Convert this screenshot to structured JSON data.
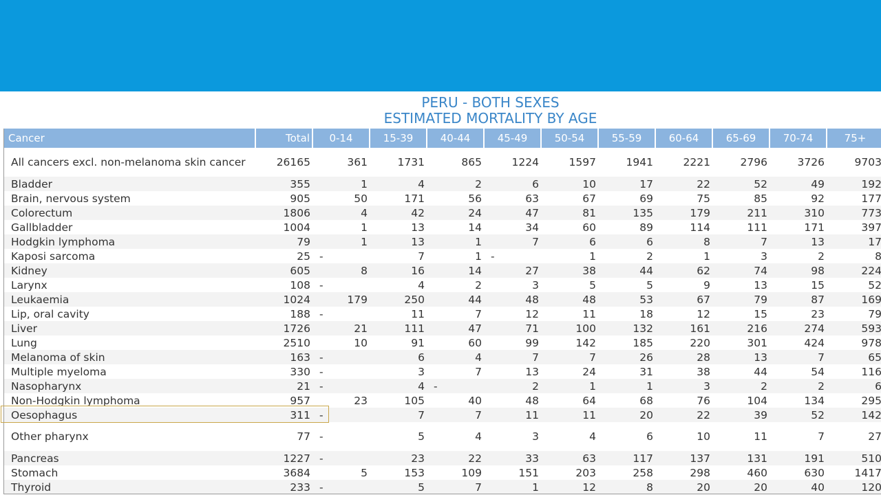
{
  "title_line1": "PERU - BOTH SEXES",
  "title_line2": "ESTIMATED MORTALITY BY AGE",
  "columns": [
    "Cancer",
    "Total",
    "0-14",
    "15-39",
    "40-44",
    "45-49",
    "50-54",
    "55-59",
    "60-64",
    "65-69",
    "70-74",
    "75+"
  ],
  "rows": [
    {
      "name": "All cancers excl. non-melanoma skin cancer",
      "values": [
        "26165",
        "361",
        "1731",
        "865",
        "1224",
        "1597",
        "1941",
        "2221",
        "2796",
        "3726",
        "9703"
      ]
    },
    {
      "name": "Bladder",
      "values": [
        "355",
        "1",
        "4",
        "2",
        "6",
        "10",
        "17",
        "22",
        "52",
        "49",
        "192"
      ]
    },
    {
      "name": "Brain, nervous system",
      "values": [
        "905",
        "50",
        "171",
        "56",
        "63",
        "67",
        "69",
        "75",
        "85",
        "92",
        "177"
      ]
    },
    {
      "name": "Colorectum",
      "values": [
        "1806",
        "4",
        "42",
        "24",
        "47",
        "81",
        "135",
        "179",
        "211",
        "310",
        "773"
      ]
    },
    {
      "name": "Gallbladder",
      "values": [
        "1004",
        "1",
        "13",
        "14",
        "34",
        "60",
        "89",
        "114",
        "111",
        "171",
        "397"
      ]
    },
    {
      "name": "Hodgkin lymphoma",
      "values": [
        "79",
        "1",
        "13",
        "1",
        "7",
        "6",
        "6",
        "8",
        "7",
        "13",
        "17"
      ]
    },
    {
      "name": "Kaposi sarcoma",
      "values": [
        "25",
        "-",
        "7",
        "1",
        "-",
        "1",
        "2",
        "1",
        "3",
        "2",
        "8"
      ]
    },
    {
      "name": "Kidney",
      "values": [
        "605",
        "8",
        "16",
        "14",
        "27",
        "38",
        "44",
        "62",
        "74",
        "98",
        "224"
      ]
    },
    {
      "name": "Larynx",
      "values": [
        "108",
        "-",
        "4",
        "2",
        "3",
        "5",
        "5",
        "9",
        "13",
        "15",
        "52"
      ]
    },
    {
      "name": "Leukaemia",
      "values": [
        "1024",
        "179",
        "250",
        "44",
        "48",
        "48",
        "53",
        "67",
        "79",
        "87",
        "169"
      ]
    },
    {
      "name": "Lip, oral cavity",
      "values": [
        "188",
        "-",
        "11",
        "7",
        "12",
        "11",
        "18",
        "12",
        "15",
        "23",
        "79"
      ]
    },
    {
      "name": "Liver",
      "values": [
        "1726",
        "21",
        "111",
        "47",
        "71",
        "100",
        "132",
        "161",
        "216",
        "274",
        "593"
      ]
    },
    {
      "name": "Lung",
      "values": [
        "2510",
        "10",
        "91",
        "60",
        "99",
        "142",
        "185",
        "220",
        "301",
        "424",
        "978"
      ]
    },
    {
      "name": "Melanoma of skin",
      "values": [
        "163",
        "-",
        "6",
        "4",
        "7",
        "7",
        "26",
        "28",
        "13",
        "7",
        "65"
      ]
    },
    {
      "name": "Multiple myeloma",
      "values": [
        "330",
        "-",
        "3",
        "7",
        "13",
        "24",
        "31",
        "38",
        "44",
        "54",
        "116"
      ]
    },
    {
      "name": "Nasopharynx",
      "values": [
        "21",
        "-",
        "4",
        "-",
        "2",
        "1",
        "1",
        "3",
        "2",
        "2",
        "6"
      ]
    },
    {
      "name": "Non-Hodgkin lymphoma",
      "values": [
        "957",
        "23",
        "105",
        "40",
        "48",
        "64",
        "68",
        "76",
        "104",
        "134",
        "295"
      ]
    },
    {
      "name": "Oesophagus",
      "values": [
        "311",
        "-",
        "7",
        "7",
        "11",
        "11",
        "20",
        "22",
        "39",
        "52",
        "142"
      ]
    },
    {
      "name": "Other pharynx",
      "values": [
        "77",
        "-",
        "5",
        "4",
        "3",
        "4",
        "6",
        "10",
        "11",
        "7",
        "27"
      ]
    },
    {
      "name": "Pancreas",
      "values": [
        "1227",
        "-",
        "23",
        "22",
        "33",
        "63",
        "117",
        "137",
        "131",
        "191",
        "510"
      ]
    },
    {
      "name": "Stomach",
      "values": [
        "3684",
        "5",
        "153",
        "109",
        "151",
        "203",
        "258",
        "298",
        "460",
        "630",
        "1417"
      ]
    },
    {
      "name": "Thyroid",
      "values": [
        "233",
        "-",
        "5",
        "7",
        "1",
        "12",
        "8",
        "20",
        "20",
        "40",
        "120"
      ]
    }
  ]
}
